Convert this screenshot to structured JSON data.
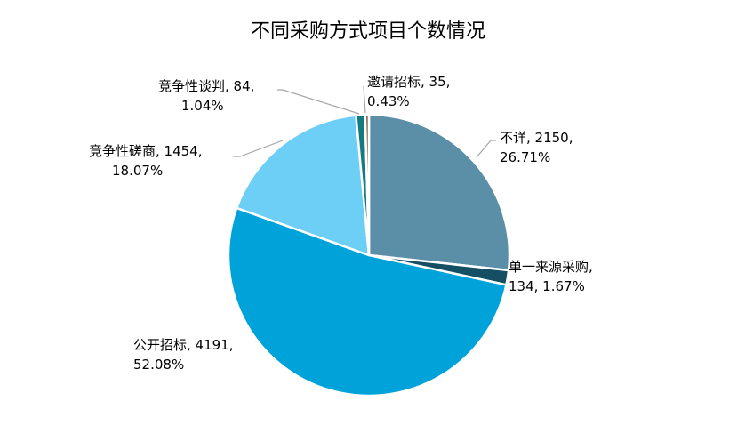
{
  "chart_data": {
    "type": "pie",
    "title": "不同采购方式项目个数情况",
    "start": "top-clockwise",
    "slices": [
      {
        "name": "不详",
        "value": 2150,
        "percent": "26.71%",
        "color": "#5b8fa8",
        "label_line1": "不详, 2150,",
        "label_line2": "26.71%"
      },
      {
        "name": "单一来源采购",
        "value": 134,
        "percent": "1.67%",
        "color": "#144f63",
        "label_line1": "单一来源采购,",
        "label_line2": "134, 1.67%"
      },
      {
        "name": "公开招标",
        "value": 4191,
        "percent": "52.08%",
        "color": "#00a2da",
        "label_line1": "公开招标, 4191,",
        "label_line2": "52.08%"
      },
      {
        "name": "竞争性磋商",
        "value": 1454,
        "percent": "18.07%",
        "color": "#6dcff6",
        "label_line1": "竞争性磋商, 1454,",
        "label_line2": "18.07%"
      },
      {
        "name": "竞争性谈判",
        "value": 84,
        "percent": "1.04%",
        "color": "#137a82",
        "label_line1": "竞争性谈判, 84,",
        "label_line2": "1.04%"
      },
      {
        "name": "邀请招标",
        "value": 35,
        "percent": "0.43%",
        "color": "#8a6f5c",
        "label_line1": "邀请招标, 35,",
        "label_line2": "0.43%"
      }
    ]
  }
}
